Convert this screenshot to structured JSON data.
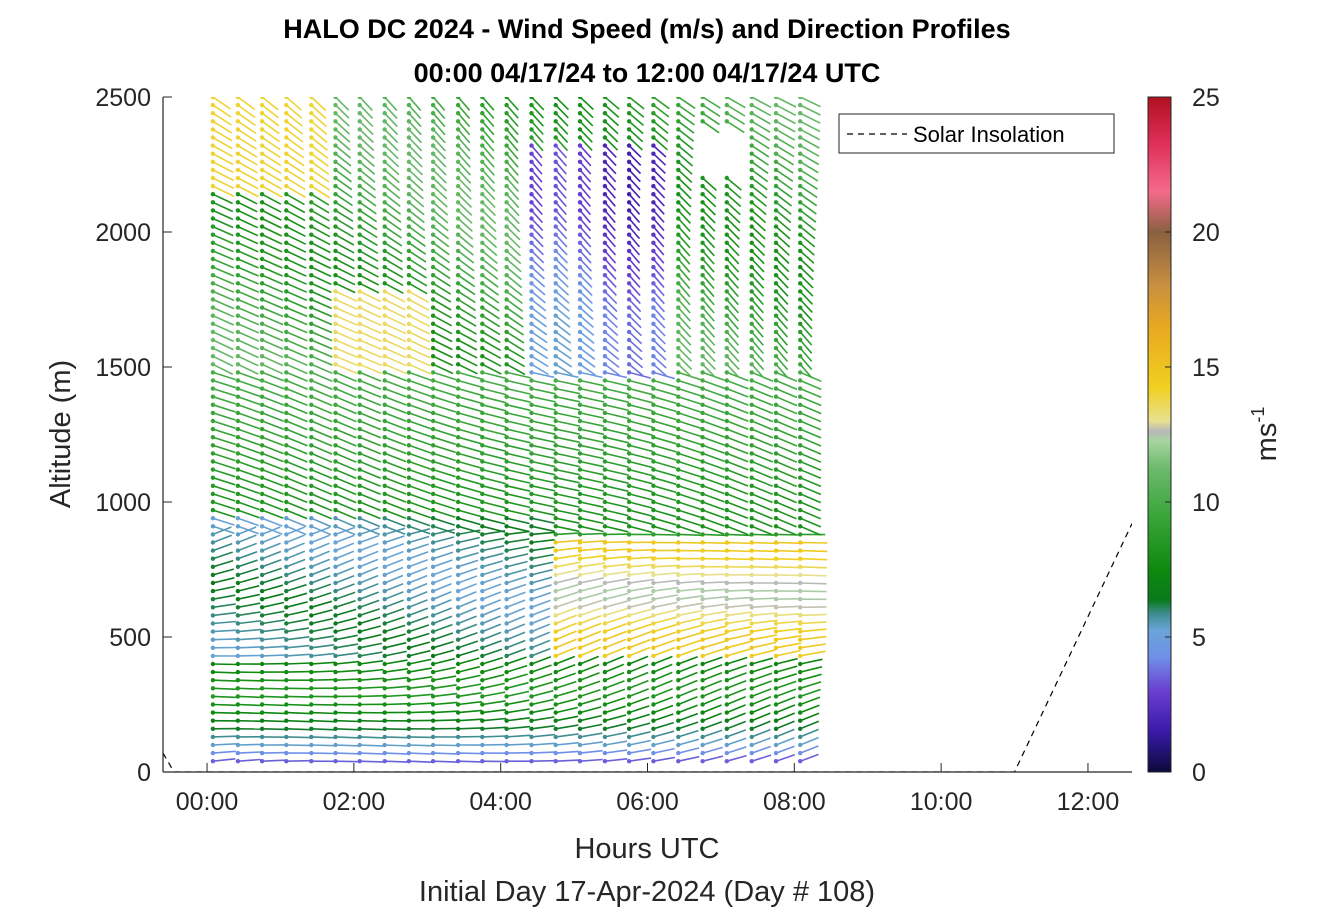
{
  "chart_data": {
    "type": "wind-barb-profile",
    "title": "HALO DC 2024 - Wind Speed (m/s) and Direction Profiles",
    "subtitle": "00:00 04/17/24 to 12:00 04/17/24  UTC",
    "xlabel": "Hours UTC",
    "xlabel2": "Initial Day 17-Apr-2024 (Day # 108)",
    "ylabel": "Altitude (m)",
    "xlim": [
      -0.6,
      12.6
    ],
    "ylim": [
      0,
      2500
    ],
    "x_ticks": [
      0,
      2,
      4,
      6,
      8,
      10,
      12
    ],
    "x_tick_labels": [
      "00:00",
      "02:00",
      "04:00",
      "06:00",
      "08:00",
      "10:00",
      "12:00"
    ],
    "y_ticks": [
      0,
      500,
      1000,
      1500,
      2000,
      2500
    ],
    "y_tick_labels": [
      "0",
      "500",
      "1000",
      "1500",
      "2000",
      "2500"
    ],
    "colorbar": {
      "label": "ms",
      "label_exponent": "-1",
      "range": [
        0,
        25
      ],
      "ticks": [
        0,
        5,
        10,
        15,
        20,
        25
      ],
      "tick_labels": [
        "0",
        "5",
        "10",
        "15",
        "20",
        "25"
      ]
    },
    "legend": {
      "entries": [
        "Solar Insolation"
      ],
      "placement": "top-right"
    },
    "series": [
      {
        "name": "Solar Insolation",
        "style": "dashed",
        "x": [
          -0.6,
          -0.45,
          11.0,
          12.6
        ],
        "y": [
          70,
          0,
          0,
          920
        ]
      }
    ],
    "profile_times": [
      0.08,
      0.42,
      0.75,
      1.08,
      1.42,
      1.75,
      2.08,
      2.42,
      2.75,
      3.08,
      3.42,
      3.75,
      4.08,
      4.42,
      4.75,
      5.08,
      5.42,
      5.75,
      6.08,
      6.42,
      6.75,
      7.08,
      7.42,
      7.75,
      8.08
    ],
    "altitude_range": [
      40,
      2500
    ],
    "altitude_step": 30
  }
}
